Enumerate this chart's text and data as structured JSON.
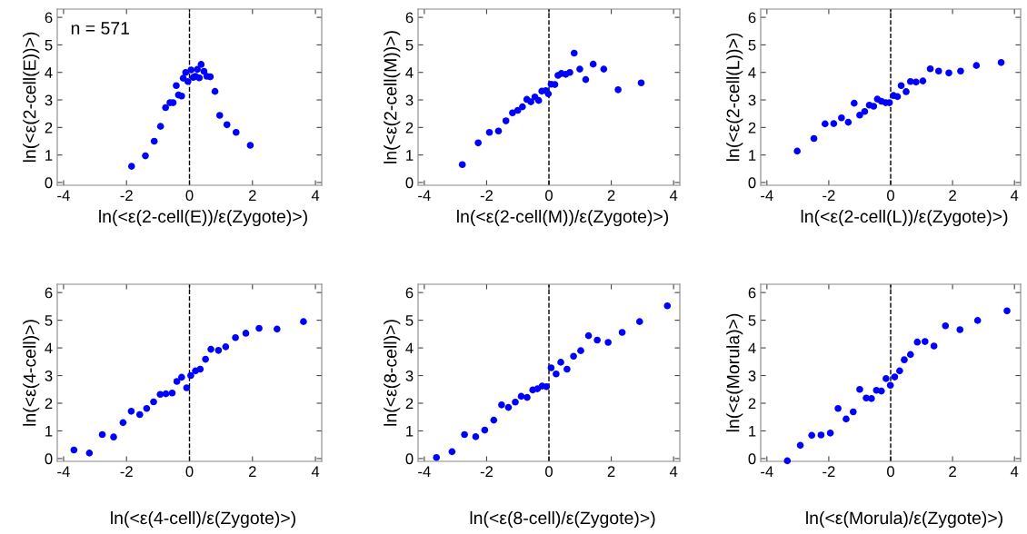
{
  "chart_data": [
    {
      "type": "scatter",
      "xlabel": "ln(<ε(2-cell(E))/ε(Zygote)>)",
      "ylabel": "ln(<ε(2-cell(E))>)",
      "annotations": [
        "n = 571"
      ],
      "color": "#0000ff",
      "marker": "circle",
      "xlim": [
        -4.2,
        4.2
      ],
      "ylim": [
        -0.1,
        6.3
      ],
      "xticks": [
        -4,
        -2,
        0,
        2,
        4
      ],
      "yticks": [
        0,
        1,
        2,
        3,
        4,
        5,
        6
      ],
      "ref_lines": [
        {
          "axis": "x",
          "value": 0,
          "color": "#000000",
          "line_style": "dashed"
        }
      ],
      "x": [
        -1.84,
        -1.4,
        -1.12,
        -0.92,
        -0.76,
        -0.62,
        -0.52,
        -0.42,
        -0.35,
        -0.25,
        -0.2,
        -0.12,
        -0.05,
        0.05,
        0.12,
        0.19,
        0.25,
        0.31,
        0.37,
        0.46,
        0.55,
        0.66,
        0.81,
        0.96,
        1.19,
        1.48,
        1.93
      ],
      "values": [
        0.59,
        0.97,
        1.5,
        2.04,
        2.72,
        2.9,
        2.9,
        3.52,
        3.18,
        3.14,
        3.79,
        4.0,
        3.67,
        4.09,
        3.82,
        3.86,
        4.11,
        3.8,
        4.29,
        4.04,
        3.86,
        3.84,
        3.31,
        2.44,
        2.1,
        1.82,
        1.35
      ]
    },
    {
      "type": "scatter",
      "xlabel": "ln(<ε(2-cell(M))/ε(Zygote)>)",
      "ylabel": "ln(<ε(2-cell(M))>)",
      "color": "#0000ff",
      "marker": "circle",
      "xlim": [
        -4.2,
        4.2
      ],
      "ylim": [
        -0.1,
        6.3
      ],
      "xticks": [
        -4,
        -2,
        0,
        2,
        4
      ],
      "yticks": [
        0,
        1,
        2,
        3,
        4,
        5,
        6
      ],
      "ref_lines": [
        {
          "axis": "x",
          "value": 0,
          "color": "#000000",
          "line_style": "dashed"
        }
      ],
      "x": [
        -2.78,
        -2.27,
        -1.91,
        -1.62,
        -1.38,
        -1.17,
        -1.0,
        -0.85,
        -0.71,
        -0.58,
        -0.45,
        -0.33,
        -0.23,
        -0.1,
        -0.02,
        0.07,
        0.19,
        0.29,
        0.4,
        0.54,
        0.67,
        0.81,
        0.99,
        1.18,
        1.42,
        1.76,
        2.22,
        2.96
      ],
      "values": [
        0.65,
        1.44,
        1.82,
        1.87,
        2.24,
        2.53,
        2.62,
        2.75,
        3.02,
        2.93,
        3.11,
        2.98,
        3.32,
        3.34,
        3.22,
        3.57,
        3.56,
        3.89,
        3.96,
        3.93,
        4.0,
        4.7,
        4.12,
        3.74,
        4.3,
        4.12,
        3.37,
        3.62
      ]
    },
    {
      "type": "scatter",
      "xlabel": "ln(<ε(2-cell(L))/ε(Zygote)>)",
      "ylabel": "ln(<ε(2-cell(L))>)",
      "color": "#0000ff",
      "marker": "circle",
      "xlim": [
        -4.2,
        4.2
      ],
      "ylim": [
        -0.1,
        6.3
      ],
      "xticks": [
        -4,
        -2,
        0,
        2,
        4
      ],
      "yticks": [
        0,
        1,
        2,
        3,
        4,
        5,
        6
      ],
      "ref_lines": [
        {
          "axis": "x",
          "value": 0,
          "color": "#000000",
          "line_style": "dashed"
        }
      ],
      "x": [
        -3.02,
        -2.48,
        -2.12,
        -1.84,
        -1.59,
        -1.37,
        -1.18,
        -1.0,
        -0.84,
        -0.69,
        -0.55,
        -0.43,
        -0.3,
        -0.16,
        -0.04,
        0.09,
        0.22,
        0.34,
        0.5,
        0.64,
        0.82,
        1.04,
        1.28,
        1.55,
        1.88,
        2.26,
        2.77,
        3.57
      ],
      "values": [
        1.14,
        1.6,
        2.13,
        2.14,
        2.35,
        2.19,
        2.88,
        2.45,
        2.58,
        2.81,
        2.77,
        3.03,
        2.95,
        2.9,
        2.9,
        3.16,
        3.12,
        3.52,
        3.3,
        3.67,
        3.65,
        3.69,
        4.13,
        4.05,
        3.98,
        4.05,
        4.25,
        4.36
      ]
    },
    {
      "type": "scatter",
      "xlabel": "ln(<ε(4-cell)/ε(Zygote)>)",
      "ylabel": "ln(<ε(4-cell)>)",
      "color": "#0000ff",
      "marker": "circle",
      "xlim": [
        -4.2,
        4.2
      ],
      "ylim": [
        -0.1,
        6.3
      ],
      "xticks": [
        -4,
        -2,
        0,
        2,
        4
      ],
      "yticks": [
        0,
        1,
        2,
        3,
        4,
        5,
        6
      ],
      "ref_lines": [
        {
          "axis": "x",
          "value": 0,
          "color": "#000000",
          "line_style": "dashed"
        }
      ],
      "x": [
        -3.67,
        -3.18,
        -2.77,
        -2.41,
        -2.11,
        -1.85,
        -1.58,
        -1.36,
        -1.14,
        -0.93,
        -0.75,
        -0.55,
        -0.4,
        -0.25,
        -0.09,
        0.04,
        0.19,
        0.34,
        0.51,
        0.68,
        0.92,
        1.15,
        1.46,
        1.79,
        2.21,
        2.78,
        3.62
      ],
      "values": [
        0.31,
        0.2,
        0.87,
        0.78,
        1.3,
        1.71,
        1.59,
        1.81,
        2.05,
        2.32,
        2.34,
        2.37,
        2.79,
        2.94,
        2.56,
        3.0,
        3.17,
        3.23,
        3.59,
        3.95,
        3.91,
        4.04,
        4.37,
        4.53,
        4.71,
        4.68,
        4.95
      ]
    },
    {
      "type": "scatter",
      "xlabel": "ln(<ε(8-cell)/ε(Zygote)>)",
      "ylabel": "ln(<ε(8-cell)>)",
      "color": "#0000ff",
      "marker": "circle",
      "xlim": [
        -4.2,
        4.2
      ],
      "ylim": [
        -0.1,
        6.3
      ],
      "xticks": [
        -4,
        -2,
        0,
        2,
        4
      ],
      "yticks": [
        0,
        1,
        2,
        3,
        4,
        5,
        6
      ],
      "ref_lines": [
        {
          "axis": "x",
          "value": 0,
          "color": "#000000",
          "line_style": "dashed"
        }
      ],
      "x": [
        -3.61,
        -3.11,
        -2.71,
        -2.35,
        -2.06,
        -1.77,
        -1.52,
        -1.3,
        -1.08,
        -0.89,
        -0.7,
        -0.52,
        -0.37,
        -0.22,
        -0.08,
        0.07,
        0.23,
        0.38,
        0.58,
        0.79,
        1.02,
        1.27,
        1.55,
        1.9,
        2.35,
        2.91,
        3.8
      ],
      "values": [
        0.04,
        0.25,
        0.87,
        0.79,
        1.03,
        1.39,
        1.94,
        1.85,
        2.04,
        2.25,
        2.21,
        2.48,
        2.52,
        2.62,
        2.6,
        3.28,
        3.06,
        3.48,
        3.23,
        3.7,
        3.9,
        4.44,
        4.28,
        4.2,
        4.56,
        4.95,
        5.52
      ]
    },
    {
      "type": "scatter",
      "xlabel": "ln(<ε(Morula)/ε(Zygote)>)",
      "ylabel": "ln(<ε(Morula)>)",
      "color": "#0000ff",
      "marker": "circle",
      "xlim": [
        -4.2,
        4.2
      ],
      "ylim": [
        -0.1,
        6.3
      ],
      "xticks": [
        -4,
        -2,
        0,
        2,
        4
      ],
      "yticks": [
        0,
        1,
        2,
        3,
        4,
        5,
        6
      ],
      "ref_lines": [
        {
          "axis": "x",
          "value": 0,
          "color": "#000000",
          "line_style": "dashed"
        }
      ],
      "x": [
        -3.34,
        -2.92,
        -2.55,
        -2.25,
        -1.95,
        -1.7,
        -1.44,
        -1.21,
        -1.0,
        -0.79,
        -0.62,
        -0.46,
        -0.3,
        -0.15,
        -0.01,
        0.13,
        0.29,
        0.44,
        0.64,
        0.86,
        1.11,
        1.4,
        1.77,
        2.24,
        2.81,
        3.76
      ],
      "values": [
        -0.08,
        0.48,
        0.84,
        0.85,
        0.92,
        1.81,
        1.43,
        1.69,
        2.5,
        2.19,
        2.17,
        2.47,
        2.44,
        2.89,
        2.65,
        2.95,
        3.17,
        3.57,
        3.76,
        4.21,
        4.23,
        4.07,
        4.8,
        4.66,
        4.99,
        5.34
      ]
    }
  ]
}
